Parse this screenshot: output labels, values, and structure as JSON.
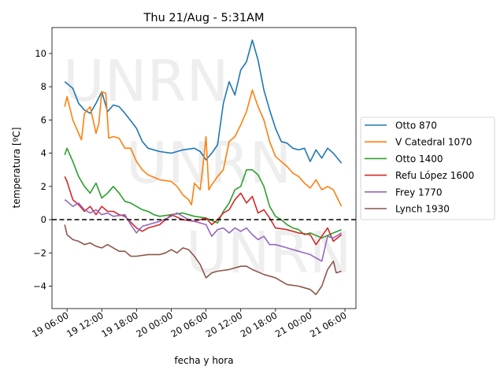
{
  "chart_data": {
    "type": "line",
    "title": "Thu 21/Aug - 5:31AM",
    "xlabel": "fecha y hora",
    "ylabel": "temperatura [ºC]",
    "x_units": "hours since 19 00:00",
    "xlim": [
      3.4,
      55.9
    ],
    "ylim": [
      -5.35,
      11.56
    ],
    "watermark": "UNRN",
    "reference_line": {
      "y": 0,
      "style": "dashed",
      "color": "#000000"
    },
    "xticks": [
      {
        "value": 6,
        "label": "19 06:00"
      },
      {
        "value": 12,
        "label": "19 12:00"
      },
      {
        "value": 18,
        "label": "19 18:00"
      },
      {
        "value": 24,
        "label": "20 00:00"
      },
      {
        "value": 30,
        "label": "20 06:00"
      },
      {
        "value": 36,
        "label": "20 12:00"
      },
      {
        "value": 42,
        "label": "20 18:00"
      },
      {
        "value": 48,
        "label": "21 00:00"
      },
      {
        "value": 54,
        "label": "21 06:00"
      }
    ],
    "yticks": [
      {
        "value": -4,
        "label": "−4"
      },
      {
        "value": -2,
        "label": "−2"
      },
      {
        "value": 0,
        "label": "0"
      },
      {
        "value": 2,
        "label": "2"
      },
      {
        "value": 4,
        "label": "4"
      },
      {
        "value": 6,
        "label": "6"
      },
      {
        "value": 8,
        "label": "8"
      },
      {
        "value": 10,
        "label": "10"
      }
    ],
    "legend_position": "center-right outside",
    "series": [
      {
        "name": "Otto 870",
        "color": "#1f77b4",
        "x": [
          5.6,
          7,
          8,
          9,
          10,
          11,
          12,
          13,
          14,
          15,
          16,
          18,
          19,
          20,
          22,
          24,
          26,
          28,
          29,
          30,
          31,
          32,
          33,
          34,
          35,
          36,
          37,
          38,
          39,
          40,
          41,
          42,
          43,
          44,
          45,
          46,
          47,
          48,
          49,
          50,
          51,
          52,
          53.4
        ],
        "y": [
          8.3,
          7.9,
          7.0,
          6.6,
          6.4,
          7.0,
          7.7,
          6.5,
          6.9,
          6.8,
          6.4,
          5.5,
          4.7,
          4.3,
          4.1,
          4.0,
          4.2,
          4.3,
          4.1,
          3.6,
          4.0,
          4.5,
          7.0,
          8.3,
          7.5,
          9.0,
          9.5,
          10.8,
          9.6,
          7.8,
          6.6,
          5.5,
          4.7,
          4.6,
          4.3,
          4.2,
          4.3,
          3.5,
          4.2,
          3.7,
          4.3,
          4.0,
          3.4
        ]
      },
      {
        "name": "V Catedral 1070",
        "color": "#ff7f0e",
        "x": [
          5.6,
          6,
          7,
          8,
          8.5,
          9,
          10,
          11,
          11.5,
          12,
          12.7,
          13.2,
          14,
          15,
          16,
          17,
          18,
          19,
          20,
          22,
          24,
          25,
          26,
          27,
          27.5,
          28,
          29,
          29.5,
          30,
          30.5,
          31,
          32,
          33,
          34,
          35,
          36,
          37,
          38,
          39,
          40,
          41,
          42,
          43,
          44,
          45,
          46,
          47,
          48,
          49,
          50,
          51,
          52,
          53.4
        ],
        "y": [
          6.8,
          7.4,
          6.0,
          5.2,
          4.8,
          6.4,
          6.8,
          5.2,
          5.8,
          7.7,
          7.6,
          4.9,
          5.0,
          4.9,
          4.3,
          4.3,
          3.5,
          3.0,
          2.7,
          2.4,
          2.3,
          2.0,
          1.5,
          1.2,
          0.9,
          2.2,
          1.8,
          3.3,
          5.0,
          1.8,
          2.1,
          2.6,
          3.0,
          4.7,
          5.0,
          5.7,
          6.5,
          7.8,
          6.8,
          6.0,
          4.7,
          3.8,
          3.5,
          3.2,
          2.8,
          2.6,
          2.2,
          1.9,
          2.4,
          1.8,
          2.0,
          1.8,
          0.8
        ]
      },
      {
        "name": "Otto 1400",
        "color": "#2ca02c",
        "x": [
          5.6,
          6,
          7,
          8,
          9,
          10,
          11,
          12,
          13,
          14,
          15,
          16,
          17,
          18,
          19,
          20,
          21,
          22,
          24,
          26,
          28,
          30,
          32,
          33,
          34,
          35,
          36,
          37,
          38,
          39,
          40,
          41,
          42,
          43,
          44,
          45,
          46,
          47,
          48,
          50,
          52,
          53.4
        ],
        "y": [
          3.9,
          4.3,
          3.5,
          2.6,
          2.0,
          1.6,
          2.2,
          1.3,
          1.6,
          2.0,
          1.6,
          1.1,
          1.0,
          0.8,
          0.6,
          0.5,
          0.3,
          0.2,
          0.3,
          0.4,
          0.2,
          0.1,
          -0.2,
          0.5,
          1.0,
          1.8,
          2.0,
          3.0,
          3.0,
          2.7,
          2.0,
          0.8,
          0.2,
          0.0,
          -0.3,
          -0.5,
          -0.6,
          -0.9,
          -0.8,
          -1.1,
          -0.8,
          -0.6
        ]
      },
      {
        "name": "Refu López 1600",
        "color": "#d62728",
        "x": [
          5.6,
          6,
          7,
          8,
          9,
          10,
          11,
          12,
          13,
          14,
          15,
          16,
          18,
          19,
          20,
          22,
          23,
          24,
          26,
          28,
          30,
          31,
          32,
          33,
          34,
          35,
          36,
          37,
          38,
          39,
          40,
          41,
          42,
          44,
          46,
          48,
          49,
          50,
          51,
          52,
          53.4
        ],
        "y": [
          2.6,
          2.3,
          1.2,
          0.9,
          0.5,
          0.8,
          0.3,
          0.8,
          0.5,
          0.5,
          0.3,
          0.2,
          -0.5,
          -0.7,
          -0.5,
          -0.3,
          0.0,
          0.3,
          0.0,
          -0.1,
          0.1,
          -0.3,
          0.0,
          0.4,
          0.6,
          1.2,
          1.6,
          1.0,
          1.4,
          0.4,
          0.6,
          0.1,
          -0.5,
          -0.6,
          -0.8,
          -0.9,
          -1.5,
          -1.0,
          -0.5,
          -1.3,
          -0.9
        ]
      },
      {
        "name": "Frey 1770",
        "color": "#9467bd",
        "x": [
          5.6,
          6,
          7,
          8,
          9,
          10,
          11,
          12,
          13,
          14,
          16,
          17,
          18,
          19,
          20,
          22,
          24,
          25,
          26,
          27,
          28,
          30,
          31,
          32,
          33,
          34,
          35,
          36,
          37,
          38,
          39,
          40,
          41,
          42,
          44,
          46,
          48,
          50,
          51,
          52,
          53.4
        ],
        "y": [
          1.2,
          1.1,
          0.8,
          1.0,
          0.6,
          0.4,
          0.6,
          0.3,
          0.4,
          0.2,
          0.3,
          -0.3,
          -0.8,
          -0.4,
          -0.3,
          -0.1,
          0.2,
          0.4,
          0.2,
          0.0,
          -0.1,
          -0.3,
          -1.0,
          -0.6,
          -0.5,
          -0.8,
          -0.5,
          -0.7,
          -0.5,
          -0.9,
          -1.2,
          -1.0,
          -1.5,
          -1.5,
          -1.7,
          -1.9,
          -2.1,
          -2.5,
          -1.0,
          -1.1,
          -0.8
        ]
      },
      {
        "name": "Lynch 1930",
        "color": "#8c564b",
        "x": [
          5.6,
          6,
          7,
          8,
          9,
          10,
          11,
          12,
          13,
          14,
          15,
          16,
          17,
          18,
          20,
          22,
          23,
          24,
          25,
          26,
          27,
          28,
          29,
          30,
          31,
          32,
          34,
          36,
          37,
          38,
          40,
          42,
          44,
          46,
          48,
          49,
          50,
          51,
          52,
          52.5,
          53.4
        ],
        "y": [
          -0.3,
          -0.9,
          -1.2,
          -1.3,
          -1.5,
          -1.4,
          -1.6,
          -1.7,
          -1.5,
          -1.7,
          -1.9,
          -1.9,
          -2.2,
          -2.2,
          -2.1,
          -2.1,
          -2.0,
          -1.8,
          -2.0,
          -1.7,
          -1.8,
          -2.2,
          -2.7,
          -3.5,
          -3.2,
          -3.1,
          -3.0,
          -2.8,
          -2.8,
          -3.0,
          -3.3,
          -3.5,
          -3.9,
          -4.0,
          -4.2,
          -4.5,
          -4.0,
          -3.0,
          -2.5,
          -3.2,
          -3.1
        ]
      }
    ]
  }
}
